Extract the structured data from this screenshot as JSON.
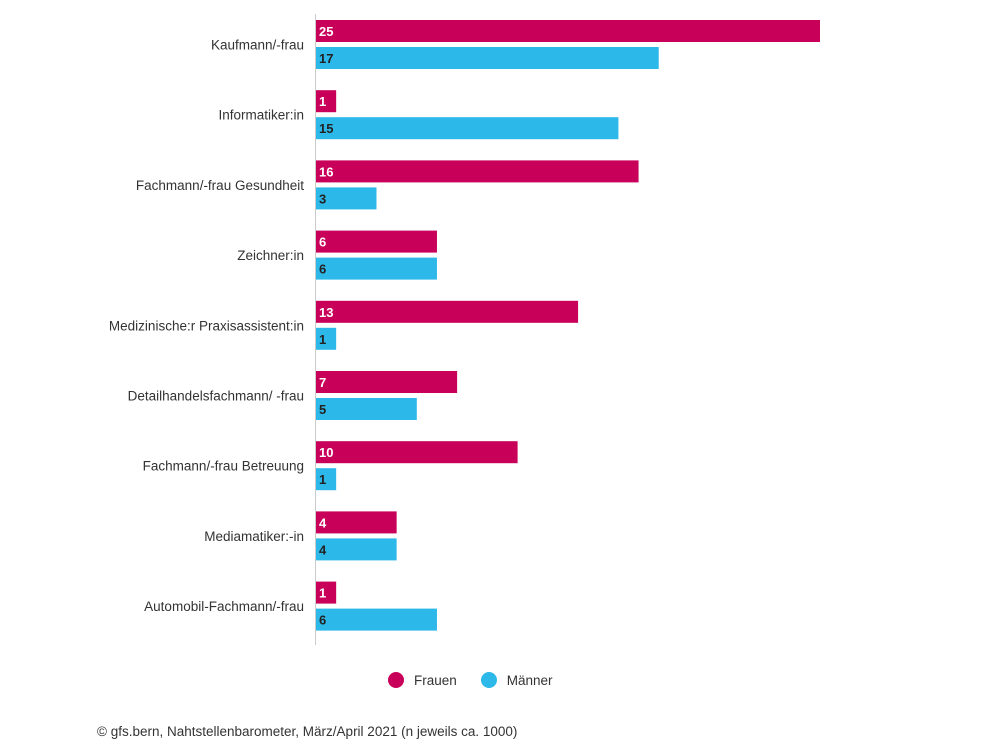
{
  "chart_data": {
    "type": "bar",
    "orientation": "horizontal",
    "categories": [
      "Kaufmann/-frau",
      "Informatiker:in",
      "Fachmann/-frau Gesundheit",
      "Zeichner:in",
      "Medizinische:r Praxisassistent:in",
      "Detailhandelsfachmann/ -frau",
      "Fachmann/-frau Betreuung",
      "Mediamatiker:-in",
      "Automobil-Fachmann/-frau"
    ],
    "series": [
      {
        "name": "Frauen",
        "color": "#c8005a",
        "values": [
          25,
          1,
          16,
          6,
          13,
          7,
          10,
          4,
          1
        ]
      },
      {
        "name": "Männer",
        "color": "#2db8ea",
        "values": [
          17,
          15,
          3,
          6,
          1,
          5,
          1,
          4,
          6
        ]
      }
    ],
    "xlim": [
      0,
      25
    ],
    "grid": false,
    "legend_position": "bottom"
  },
  "source": "© gfs.bern, Nahtstellenbarometer, März/April 2021 (n jeweils ca. 1000)"
}
